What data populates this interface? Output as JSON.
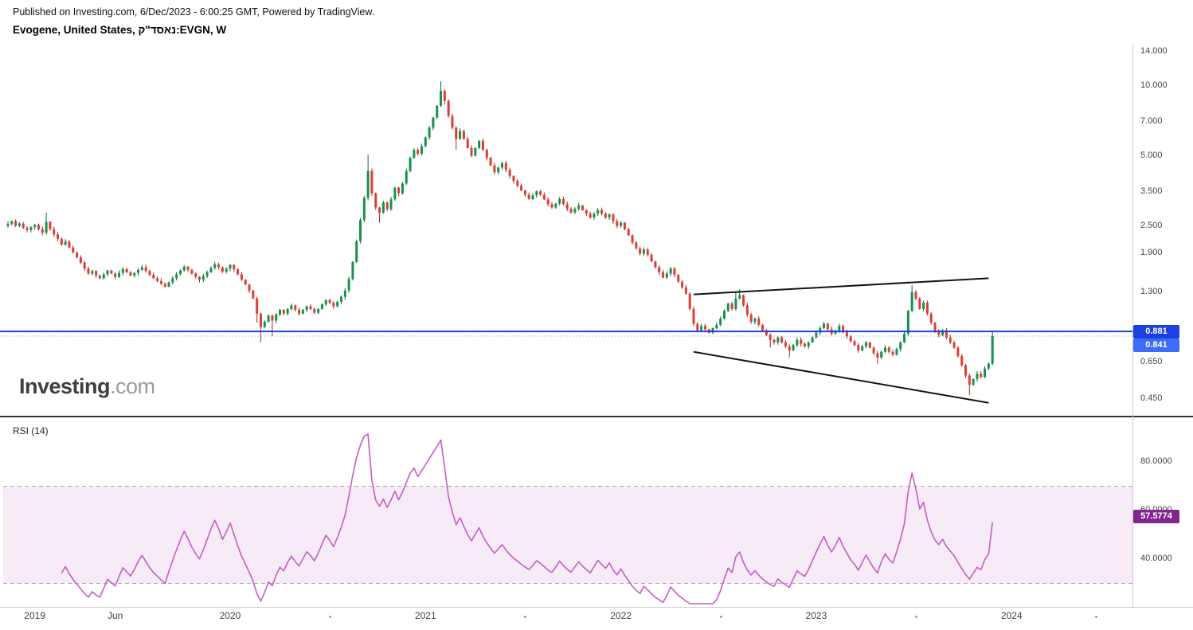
{
  "header": {
    "published_line": "Published on Investing.com, 6/Dec/2023 - 6:00:25 GMT, Powered by TradingView.",
    "symbol_line": "Evogene, United States, נאסד\"ק:EVGN, W"
  },
  "watermark": {
    "bold": "Investing",
    "light": ".com"
  },
  "chart_data": {
    "type": "candlestick",
    "title": "Evogene (EVGN) Weekly",
    "symbol": "EVGN",
    "timeframe": "W",
    "scale": "log",
    "grid": "off",
    "colors": {
      "up": "#17914f",
      "up_border": "#0d6638",
      "down": "#de3e33",
      "down_border": "#9e2b23",
      "trendline": "#141414",
      "dotted_line": "#9598a1"
    },
    "price_ticks": [
      {
        "v": 14.0,
        "t": "14.000"
      },
      {
        "v": 10.0,
        "t": "10.000"
      },
      {
        "v": 7.0,
        "t": "7.000"
      },
      {
        "v": 5.0,
        "t": "5.000"
      },
      {
        "v": 3.5,
        "t": "3.500"
      },
      {
        "v": 2.5,
        "t": "2.500"
      },
      {
        "v": 1.9,
        "t": "1.900"
      },
      {
        "v": 1.3,
        "t": "1.300"
      },
      {
        "v": 0.65,
        "t": "0.650"
      },
      {
        "v": 0.45,
        "t": "0.450"
      }
    ],
    "horizontal_line": {
      "price": 0.881,
      "label": "0.881",
      "color": "#1d41e0"
    },
    "last_price": {
      "value": 0.841,
      "label": "0.841",
      "color": "#3d6df7"
    },
    "first_open": 2.5,
    "closes": [
      2.55,
      2.62,
      2.5,
      2.56,
      2.45,
      2.4,
      2.47,
      2.52,
      2.42,
      2.34,
      2.6,
      2.42,
      2.3,
      2.2,
      2.08,
      2.14,
      2.02,
      1.92,
      1.83,
      1.74,
      1.64,
      1.56,
      1.6,
      1.53,
      1.49,
      1.55,
      1.61,
      1.56,
      1.51,
      1.57,
      1.63,
      1.58,
      1.53,
      1.57,
      1.62,
      1.66,
      1.6,
      1.54,
      1.49,
      1.45,
      1.41,
      1.37,
      1.43,
      1.49,
      1.55,
      1.61,
      1.67,
      1.62,
      1.56,
      1.51,
      1.47,
      1.52,
      1.58,
      1.65,
      1.71,
      1.66,
      1.59,
      1.64,
      1.7,
      1.63,
      1.55,
      1.47,
      1.4,
      1.32,
      1.22,
      1.05,
      0.92,
      0.97,
      1.03,
      0.98,
      1.04,
      1.09,
      1.05,
      1.1,
      1.14,
      1.09,
      1.05,
      1.09,
      1.13,
      1.1,
      1.06,
      1.1,
      1.15,
      1.2,
      1.17,
      1.13,
      1.18,
      1.24,
      1.32,
      1.48,
      1.75,
      2.15,
      2.65,
      3.3,
      4.3,
      3.45,
      3.0,
      2.85,
      3.15,
      2.95,
      3.25,
      3.65,
      3.45,
      3.8,
      4.3,
      4.9,
      5.3,
      5.1,
      5.5,
      6.0,
      6.6,
      7.3,
      8.2,
      9.5,
      8.6,
      7.4,
      6.6,
      5.9,
      6.4,
      5.9,
      5.4,
      5.0,
      5.4,
      5.8,
      5.3,
      4.9,
      4.55,
      4.25,
      4.45,
      4.65,
      4.35,
      4.1,
      3.9,
      3.72,
      3.55,
      3.4,
      3.26,
      3.38,
      3.52,
      3.4,
      3.25,
      3.1,
      3.0,
      3.12,
      3.26,
      3.1,
      2.96,
      2.86,
      2.96,
      3.06,
      2.92,
      2.82,
      2.72,
      2.82,
      2.92,
      2.82,
      2.72,
      2.8,
      2.62,
      2.5,
      2.58,
      2.42,
      2.28,
      2.12,
      2.0,
      1.9,
      1.98,
      1.88,
      1.76,
      1.66,
      1.58,
      1.5,
      1.56,
      1.64,
      1.54,
      1.44,
      1.36,
      1.28,
      1.1,
      0.95,
      0.89,
      0.93,
      0.9,
      0.87,
      0.91,
      0.94,
      1.0,
      1.08,
      1.16,
      1.1,
      1.22,
      1.26,
      1.14,
      1.04,
      0.97,
      1.0,
      0.94,
      0.89,
      0.85,
      0.81,
      0.79,
      0.83,
      0.79,
      0.76,
      0.73,
      0.77,
      0.81,
      0.78,
      0.76,
      0.79,
      0.83,
      0.87,
      0.91,
      0.95,
      0.9,
      0.86,
      0.89,
      0.93,
      0.88,
      0.84,
      0.8,
      0.77,
      0.73,
      0.76,
      0.79,
      0.75,
      0.71,
      0.68,
      0.72,
      0.75,
      0.72,
      0.7,
      0.74,
      0.79,
      0.86,
      1.08,
      1.3,
      1.22,
      1.1,
      1.17,
      1.05,
      0.96,
      0.89,
      0.85,
      0.89,
      0.83,
      0.79,
      0.75,
      0.69,
      0.63,
      0.57,
      0.52,
      0.55,
      0.58,
      0.56,
      0.61,
      0.64,
      0.841
    ],
    "wick_overrides": {
      "10": {
        "h": 2.85
      },
      "65": {
        "l": 0.96
      },
      "66": {
        "l": 0.79
      },
      "69": {
        "l": 0.84
      },
      "94": {
        "h": 5.05
      },
      "97": {
        "l": 2.58
      },
      "113": {
        "h": 10.43
      },
      "114": {
        "l": 8.3
      },
      "117": {
        "l": 5.3
      },
      "190": {
        "h": 1.3
      },
      "191": {
        "h": 1.335
      },
      "199": {
        "l": 0.75
      },
      "204": {
        "l": 0.68
      },
      "227": {
        "l": 0.64
      },
      "236": {
        "h": 1.39
      },
      "251": {
        "l": 0.47
      },
      "257": {
        "h": 0.88,
        "l": 0.63
      }
    },
    "trendlines": [
      {
        "i1": 179,
        "p1": 1.27,
        "i2": 256,
        "p2": 1.49
      },
      {
        "i1": 179,
        "p1": 0.72,
        "i2": 256,
        "p2": 0.435
      }
    ],
    "rsi": {
      "label": "RSI (14)",
      "period": 14,
      "last_value": 57.5774,
      "last_label": "57.5774",
      "band": [
        30,
        70
      ],
      "ticks": [
        {
          "v": 80,
          "t": "80.0000"
        },
        {
          "v": 60,
          "t": "60.0000"
        },
        {
          "v": 40,
          "t": "40.0000"
        }
      ],
      "line_color": "#c45ec4",
      "band_fill": "#f0ddf0",
      "band_border": "#b8a3b8",
      "badge_color": "#83268f"
    }
  },
  "time_axis": {
    "labels": [
      {
        "text": "2019",
        "week": 7
      },
      {
        "text": "Jun",
        "week": 28
      },
      {
        "text": "2020",
        "week": 58
      },
      {
        "text": "2021",
        "week": 109
      },
      {
        "text": "2022",
        "week": 160
      },
      {
        "text": "2023",
        "week": 211
      },
      {
        "text": "2024",
        "week": 262
      }
    ],
    "minor_tick_weeks": [
      84,
      135,
      186,
      237,
      284
    ]
  }
}
